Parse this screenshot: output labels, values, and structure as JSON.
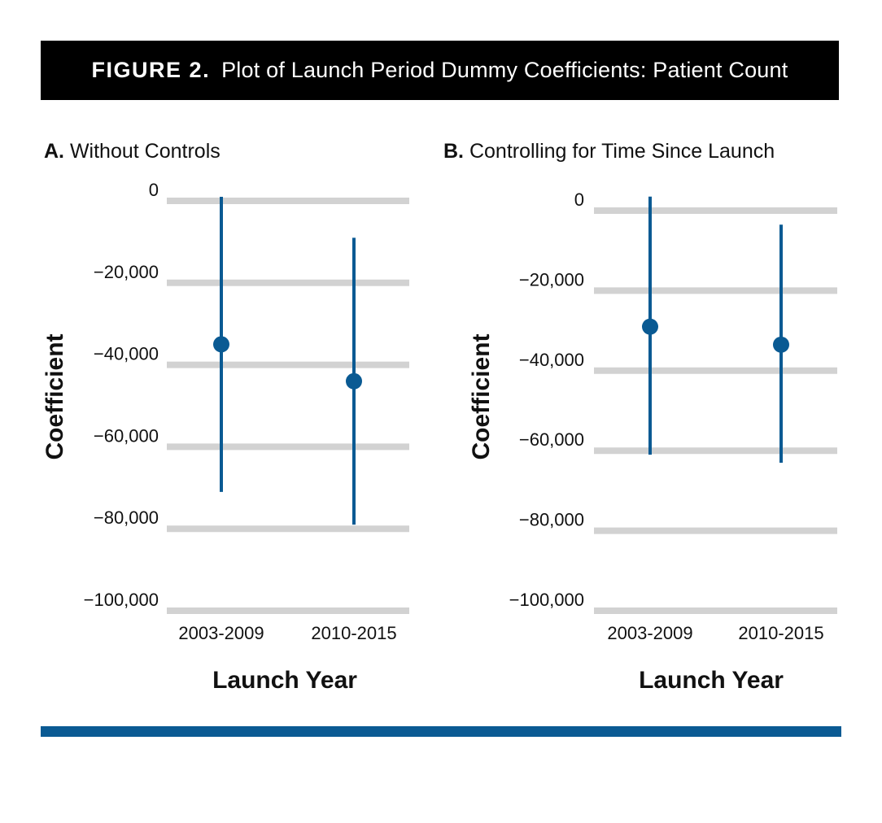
{
  "figure": {
    "label": "FIGURE 2.",
    "title": "Plot of Launch Period Dummy Coefficients: Patient Count"
  },
  "colors": {
    "accent": "#0a5a93",
    "grid": "#d2d2d2",
    "title_bg": "#000000"
  },
  "chart_data": [
    {
      "type": "scatter",
      "panel_letter": "A.",
      "panel_title": "Without Controls",
      "ylabel": "Coefficient",
      "xlabel": "Launch Year",
      "categories": [
        "2003-2009",
        "2010-2015"
      ],
      "yticks": [
        0,
        -20000,
        -40000,
        -60000,
        -80000,
        -100000
      ],
      "ytick_labels": [
        "0",
        "−20,000",
        "−40,000",
        "−60,000",
        "−80,000",
        "−100,000"
      ],
      "points": [
        {
          "category": "2003-2009",
          "estimate": -35000,
          "ci_low": -71000,
          "ci_high": 1000
        },
        {
          "category": "2010-2015",
          "estimate": -44000,
          "ci_low": -79000,
          "ci_high": -9000
        }
      ],
      "ylim": [
        -100000,
        0
      ]
    },
    {
      "type": "scatter",
      "panel_letter": "B.",
      "panel_title": "Controlling for Time Since Launch",
      "ylabel": "Coefficient",
      "xlabel": "Launch Year",
      "categories": [
        "2003-2009",
        "2010-2015"
      ],
      "yticks": [
        0,
        -20000,
        -40000,
        -60000,
        -80000,
        -100000
      ],
      "ytick_labels": [
        "0",
        "−20,000",
        "−40,000",
        "−60,000",
        "−80,000",
        "−100,000"
      ],
      "points": [
        {
          "category": "2003-2009",
          "estimate": -29000,
          "ci_low": -61000,
          "ci_high": 3500
        },
        {
          "category": "2010-2015",
          "estimate": -33500,
          "ci_low": -63000,
          "ci_high": -3500
        }
      ],
      "ylim": [
        -100000,
        0
      ]
    }
  ]
}
